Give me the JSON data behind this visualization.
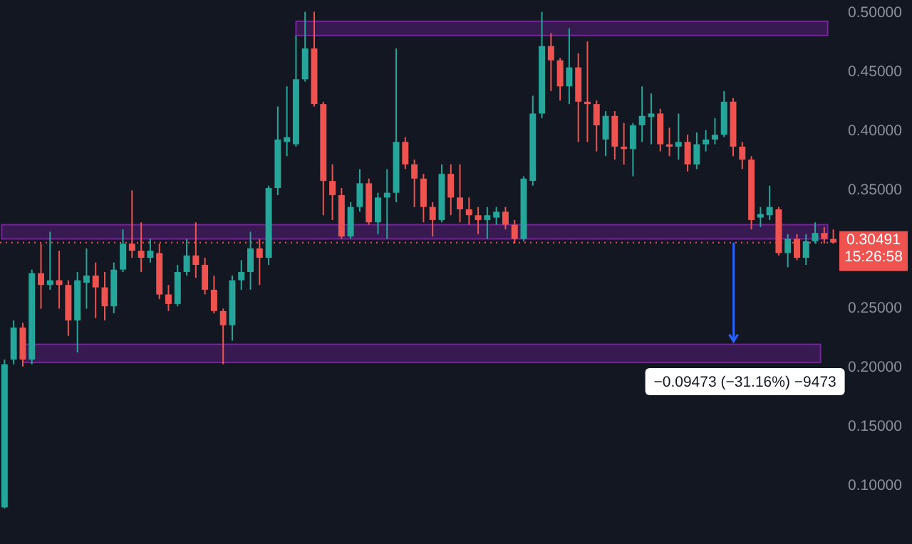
{
  "chart_data": {
    "type": "candlestick",
    "ohlc": [
      [
        0.081,
        0.206,
        0.08,
        0.202
      ],
      [
        0.206,
        0.239,
        0.202,
        0.233
      ],
      [
        0.233,
        0.237,
        0.2,
        0.206
      ],
      [
        0.206,
        0.282,
        0.202,
        0.279
      ],
      [
        0.279,
        0.304,
        0.249,
        0.269
      ],
      [
        0.269,
        0.314,
        0.265,
        0.273
      ],
      [
        0.273,
        0.298,
        0.249,
        0.269
      ],
      [
        0.269,
        0.273,
        0.226,
        0.239
      ],
      [
        0.239,
        0.28,
        0.212,
        0.273
      ],
      [
        0.271,
        0.3,
        0.249,
        0.277
      ],
      [
        0.277,
        0.288,
        0.241,
        0.267
      ],
      [
        0.267,
        0.28,
        0.239,
        0.251
      ],
      [
        0.251,
        0.288,
        0.245,
        0.282
      ],
      [
        0.282,
        0.316,
        0.28,
        0.304
      ],
      [
        0.304,
        0.349,
        0.292,
        0.298
      ],
      [
        0.298,
        0.322,
        0.28,
        0.292
      ],
      [
        0.292,
        0.308,
        0.288,
        0.298
      ],
      [
        0.296,
        0.304,
        0.257,
        0.261
      ],
      [
        0.261,
        0.269,
        0.247,
        0.253
      ],
      [
        0.253,
        0.286,
        0.251,
        0.28
      ],
      [
        0.28,
        0.308,
        0.277,
        0.294
      ],
      [
        0.294,
        0.322,
        0.275,
        0.286
      ],
      [
        0.286,
        0.292,
        0.261,
        0.265
      ],
      [
        0.265,
        0.277,
        0.245,
        0.247
      ],
      [
        0.247,
        0.249,
        0.202,
        0.235
      ],
      [
        0.235,
        0.277,
        0.222,
        0.273
      ],
      [
        0.273,
        0.29,
        0.265,
        0.28
      ],
      [
        0.28,
        0.314,
        0.265,
        0.3
      ],
      [
        0.3,
        0.308,
        0.269,
        0.292
      ],
      [
        0.292,
        0.353,
        0.286,
        0.351
      ],
      [
        0.351,
        0.42,
        0.345,
        0.392
      ],
      [
        0.39,
        0.437,
        0.378,
        0.394
      ],
      [
        0.388,
        0.48,
        0.386,
        0.443
      ],
      [
        0.443,
        0.5,
        0.441,
        0.469
      ],
      [
        0.469,
        0.5,
        0.42,
        0.422
      ],
      [
        0.422,
        0.424,
        0.328,
        0.357
      ],
      [
        0.357,
        0.371,
        0.324,
        0.345
      ],
      [
        0.345,
        0.351,
        0.308,
        0.31
      ],
      [
        0.31,
        0.339,
        0.308,
        0.335
      ],
      [
        0.335,
        0.367,
        0.331,
        0.355
      ],
      [
        0.355,
        0.359,
        0.32,
        0.322
      ],
      [
        0.322,
        0.347,
        0.312,
        0.343
      ],
      [
        0.343,
        0.367,
        0.308,
        0.347
      ],
      [
        0.347,
        0.469,
        0.339,
        0.39
      ],
      [
        0.39,
        0.394,
        0.367,
        0.371
      ],
      [
        0.371,
        0.375,
        0.335,
        0.359
      ],
      [
        0.359,
        0.363,
        0.322,
        0.335
      ],
      [
        0.335,
        0.339,
        0.31,
        0.324
      ],
      [
        0.324,
        0.371,
        0.322,
        0.363
      ],
      [
        0.363,
        0.371,
        0.328,
        0.343
      ],
      [
        0.343,
        0.371,
        0.322,
        0.333
      ],
      [
        0.333,
        0.343,
        0.32,
        0.328
      ],
      [
        0.328,
        0.335,
        0.312,
        0.324
      ],
      [
        0.324,
        0.335,
        0.308,
        0.328
      ],
      [
        0.326,
        0.335,
        0.32,
        0.331
      ],
      [
        0.331,
        0.335,
        0.316,
        0.32
      ],
      [
        0.32,
        0.324,
        0.304,
        0.308
      ],
      [
        0.308,
        0.361,
        0.306,
        0.359
      ],
      [
        0.357,
        0.429,
        0.353,
        0.414
      ],
      [
        0.414,
        0.5,
        0.41,
        0.471
      ],
      [
        0.471,
        0.482,
        0.433,
        0.459
      ],
      [
        0.459,
        0.461,
        0.425,
        0.437
      ],
      [
        0.437,
        0.486,
        0.422,
        0.453
      ],
      [
        0.453,
        0.465,
        0.39,
        0.424
      ],
      [
        0.424,
        0.475,
        0.39,
        0.422
      ],
      [
        0.422,
        0.425,
        0.382,
        0.404
      ],
      [
        0.392,
        0.416,
        0.378,
        0.412
      ],
      [
        0.412,
        0.416,
        0.375,
        0.386
      ],
      [
        0.386,
        0.406,
        0.371,
        0.384
      ],
      [
        0.384,
        0.406,
        0.361,
        0.404
      ],
      [
        0.404,
        0.437,
        0.39,
        0.412
      ],
      [
        0.411,
        0.431,
        0.388,
        0.414
      ],
      [
        0.414,
        0.418,
        0.382,
        0.388
      ],
      [
        0.388,
        0.402,
        0.378,
        0.386
      ],
      [
        0.386,
        0.414,
        0.375,
        0.39
      ],
      [
        0.39,
        0.396,
        0.365,
        0.371
      ],
      [
        0.371,
        0.398,
        0.367,
        0.388
      ],
      [
        0.388,
        0.4,
        0.382,
        0.392
      ],
      [
        0.392,
        0.41,
        0.388,
        0.396
      ],
      [
        0.396,
        0.433,
        0.394,
        0.424
      ],
      [
        0.424,
        0.427,
        0.378,
        0.386
      ],
      [
        0.386,
        0.39,
        0.367,
        0.375
      ],
      [
        0.375,
        0.378,
        0.316,
        0.324
      ],
      [
        0.326,
        0.335,
        0.318,
        0.329
      ],
      [
        0.328,
        0.353,
        0.324,
        0.335
      ],
      [
        0.333,
        0.335,
        0.294,
        0.296
      ],
      [
        0.296,
        0.312,
        0.284,
        0.308
      ],
      [
        0.308,
        0.312,
        0.29,
        0.292
      ],
      [
        0.292,
        0.312,
        0.286,
        0.306
      ],
      [
        0.306,
        0.322,
        0.304,
        0.313
      ],
      [
        0.313,
        0.318,
        0.304,
        0.308
      ],
      [
        0.308,
        0.316,
        0.304,
        0.30491
      ]
    ],
    "categories": [
      null,
      null,
      null,
      null,
      null,
      null,
      null,
      null,
      null,
      null,
      null,
      null,
      null,
      null,
      null,
      null,
      null,
      null,
      null,
      null,
      null,
      null,
      null,
      null,
      null,
      null,
      null,
      null,
      null,
      null,
      null,
      null,
      null,
      null,
      null,
      null,
      null,
      null,
      null,
      null,
      null,
      null,
      null,
      null,
      null,
      null,
      null,
      null,
      null,
      null,
      null,
      null,
      null,
      null,
      null,
      null,
      null,
      null,
      null,
      null,
      null,
      null,
      null,
      null,
      null,
      null,
      null,
      null,
      null,
      null,
      null,
      null,
      null,
      null,
      null,
      null,
      null,
      null,
      null,
      null,
      null,
      null,
      null,
      null,
      null,
      null,
      null,
      null,
      null,
      null,
      null,
      null
    ],
    "colors": [
      "#26a69a",
      "#26a69a",
      "#ef5350",
      "#26a69a",
      "#ef5350",
      "#26a69a",
      "#ef5350",
      "#ef5350",
      "#26a69a",
      "#26a69a",
      "#ef5350",
      "#ef5350",
      "#26a69a",
      "#26a69a",
      "#ef5350",
      "#ef5350",
      "#26a69a",
      "#ef5350",
      "#ef5350",
      "#26a69a",
      "#26a69a",
      "#ef5350",
      "#ef5350",
      "#ef5350",
      "#ef5350",
      "#26a69a",
      "#26a69a",
      "#26a69a",
      "#ef5350",
      "#26a69a",
      "#26a69a",
      "#26a69a",
      "#26a69a",
      "#26a69a",
      "#ef5350",
      "#ef5350",
      "#ef5350",
      "#ef5350",
      "#26a69a",
      "#26a69a",
      "#ef5350",
      "#26a69a",
      "#26a69a",
      "#26a69a",
      "#ef5350",
      "#ef5350",
      "#ef5350",
      "#ef5350",
      "#26a69a",
      "#ef5350",
      "#ef5350",
      "#ef5350",
      "#ef5350",
      "#26a69a",
      "#26a69a",
      "#ef5350",
      "#ef5350",
      "#26a69a",
      "#26a69a",
      "#26a69a",
      "#ef5350",
      "#ef5350",
      "#26a69a",
      "#ef5350",
      "#ef5350",
      "#ef5350",
      "#26a69a",
      "#ef5350",
      "#ef5350",
      "#26a69a",
      "#26a69a",
      "#26a69a",
      "#ef5350",
      "#ef5350",
      "#26a69a",
      "#ef5350",
      "#26a69a",
      "#26a69a",
      "#26a69a",
      "#26a69a",
      "#ef5350",
      "#ef5350",
      "#ef5350",
      "#26a69a",
      "#26a69a",
      "#ef5350",
      "#26a69a",
      "#ef5350",
      "#26a69a",
      "#26a69a",
      "#ef5350",
      "#ef5350"
    ],
    "ylim": [
      0.05,
      0.51
    ],
    "yticks": [
      {
        "value": 0.1,
        "label": "0.10000"
      },
      {
        "value": 0.15,
        "label": "0.15000"
      },
      {
        "value": 0.2,
        "label": "0.20000"
      },
      {
        "value": 0.25,
        "label": "0.25000"
      },
      {
        "value": 0.35,
        "label": "0.35000"
      },
      {
        "value": 0.4,
        "label": "0.40000"
      },
      {
        "value": 0.45,
        "label": "0.45000"
      },
      {
        "value": 0.5,
        "label": "0.50000"
      }
    ],
    "ref_lines": [
      {
        "axis": "y",
        "value": 0.30491,
        "label": "0.30491\n15:26:58",
        "color": "#ef5350",
        "line_style": "dotted"
      }
    ],
    "bands": [
      {
        "axis": "y",
        "from": 0.48,
        "to": 0.492,
        "color": "#7b1fa2"
      },
      {
        "axis": "y",
        "from": 0.308,
        "to": 0.32,
        "color": "#7b1fa2"
      },
      {
        "axis": "y",
        "from": 0.2035,
        "to": 0.2188,
        "color": "#7b1fa2"
      }
    ],
    "annotations": [
      "−0.09473 (−31.16%) −9473"
    ],
    "grid": false
  }
}
